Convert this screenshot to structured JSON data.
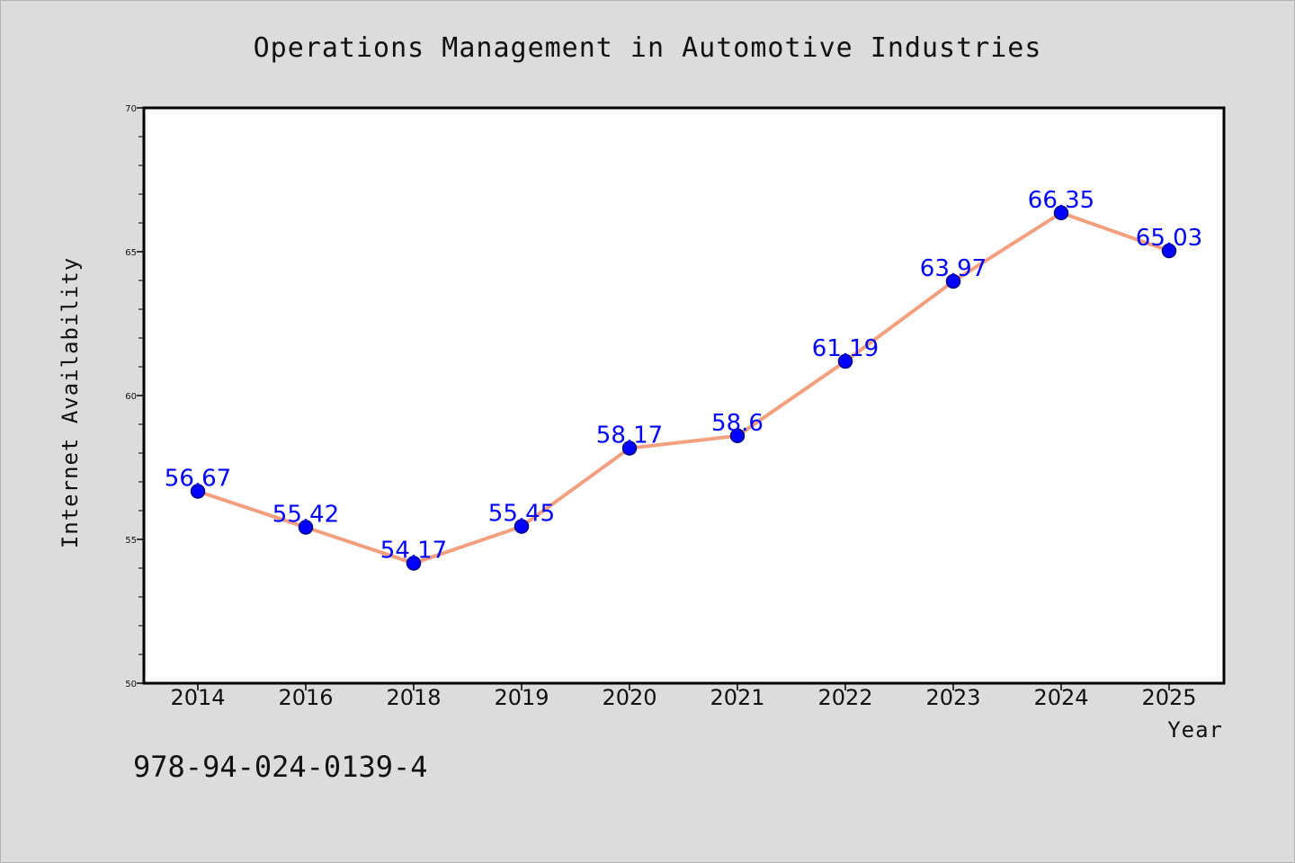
{
  "chart_data": {
    "type": "line",
    "title": "Operations Management in Automotive Industries",
    "xlabel": "Year",
    "ylabel": "Internet Availability",
    "categories": [
      "2014",
      "2016",
      "2018",
      "2019",
      "2020",
      "2021",
      "2022",
      "2023",
      "2024",
      "2025"
    ],
    "series": [
      {
        "values": [
          56.67,
          55.42,
          54.17,
          55.45,
          58.17,
          58.6,
          61.19,
          63.97,
          66.35,
          65.03
        ],
        "labels": [
          "56.67",
          "55.42",
          "54.17",
          "55.45",
          "58.17",
          "58.6",
          "61.19",
          "63.97",
          "66.35",
          "65.03"
        ]
      }
    ],
    "ylim": [
      50,
      70
    ],
    "yticks": [
      "50",
      "55",
      "60",
      "65",
      "70"
    ],
    "grid": false,
    "legend": "none",
    "colors": {
      "line": "#f4a07e",
      "marker": "#0000ff",
      "marker_edge": "#000080",
      "data_label": "#0000ff",
      "plot_background": "#ffffff",
      "page_background": "#dcdcdc"
    }
  },
  "footer": {
    "isbn": "978-94-024-0139-4"
  }
}
